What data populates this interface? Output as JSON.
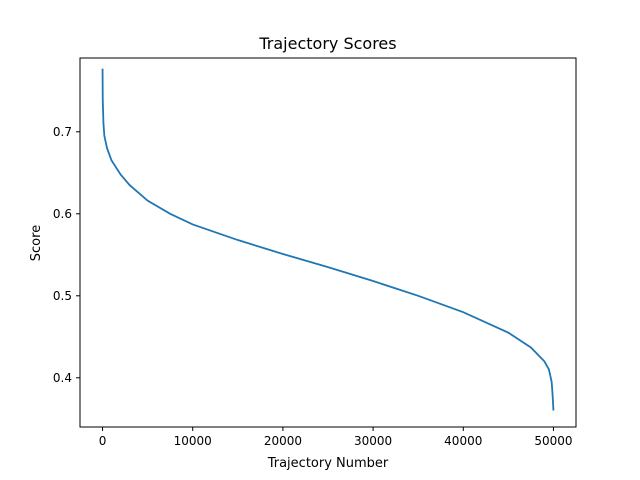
{
  "chart_data": {
    "type": "line",
    "title": "Trajectory Scores",
    "xlabel": "Trajectory Number",
    "ylabel": "Score",
    "xlim": [
      -2500,
      52500
    ],
    "ylim": [
      0.34,
      0.79
    ],
    "xticks": [
      0,
      10000,
      20000,
      30000,
      40000,
      50000
    ],
    "yticks": [
      0.4,
      0.5,
      0.6,
      0.7
    ],
    "grid": false,
    "legend": "none",
    "series": [
      {
        "color": "#1f77b4",
        "x": [
          0,
          20,
          100,
          200,
          500,
          1000,
          2000,
          3000,
          5000,
          7500,
          10000,
          15000,
          20000,
          25000,
          30000,
          35000,
          40000,
          45000,
          47500,
          49000,
          49500,
          49800,
          49900,
          50000
        ],
        "y": [
          0.777,
          0.74,
          0.71,
          0.695,
          0.68,
          0.665,
          0.648,
          0.635,
          0.616,
          0.6,
          0.587,
          0.568,
          0.551,
          0.535,
          0.518,
          0.5,
          0.48,
          0.455,
          0.437,
          0.42,
          0.41,
          0.395,
          0.38,
          0.36
        ]
      }
    ]
  }
}
